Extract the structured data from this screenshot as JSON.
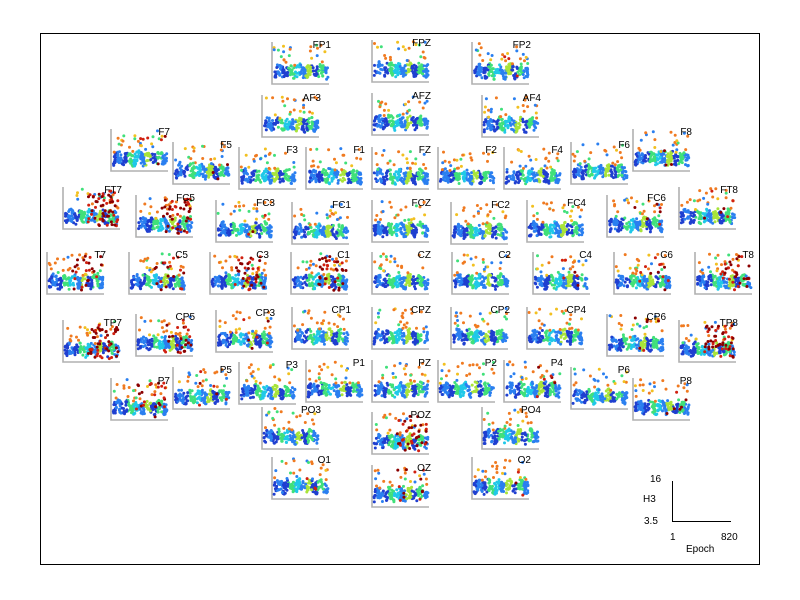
{
  "chart_data": {
    "type": "scatter",
    "title": "",
    "xlabel": "Epoch",
    "ylabel": "H3",
    "xlim": [
      1,
      820
    ],
    "ylim": [
      3.5,
      16
    ],
    "scale_labels": {
      "y_max": "16",
      "y_min": "3.5",
      "x_min": "1",
      "x_max": "820",
      "xlabel": "Epoch",
      "ylabel": "H3"
    },
    "colormap": [
      "#1f3fd0",
      "#2a7ff0",
      "#20c8e8",
      "#40e07a",
      "#a8e43a",
      "#f2c020",
      "#f07a20",
      "#d02010",
      "#8b0000"
    ],
    "channels": [
      {
        "name": "FP1",
        "artifact": 0.0
      },
      {
        "name": "FPZ",
        "artifact": 0.0
      },
      {
        "name": "FP2",
        "artifact": 0.05
      },
      {
        "name": "AF3",
        "artifact": 0.0
      },
      {
        "name": "AFZ",
        "artifact": 0.0
      },
      {
        "name": "AF4",
        "artifact": 0.0
      },
      {
        "name": "F7",
        "artifact": 0.1
      },
      {
        "name": "F5",
        "artifact": 0.05
      },
      {
        "name": "F3",
        "artifact": 0.0
      },
      {
        "name": "F1",
        "artifact": 0.0
      },
      {
        "name": "FZ",
        "artifact": 0.0
      },
      {
        "name": "F2",
        "artifact": 0.0
      },
      {
        "name": "F4",
        "artifact": 0.0
      },
      {
        "name": "F6",
        "artifact": 0.0
      },
      {
        "name": "F8",
        "artifact": 0.05
      },
      {
        "name": "FT7",
        "artifact": 0.9
      },
      {
        "name": "FC5",
        "artifact": 0.7
      },
      {
        "name": "FC3",
        "artifact": 0.05
      },
      {
        "name": "FC1",
        "artifact": 0.0
      },
      {
        "name": "FCZ",
        "artifact": 0.0
      },
      {
        "name": "FC2",
        "artifact": 0.0
      },
      {
        "name": "FC4",
        "artifact": 0.0
      },
      {
        "name": "FC6",
        "artifact": 0.1
      },
      {
        "name": "FT8",
        "artifact": 0.1
      },
      {
        "name": "T7",
        "artifact": 0.4
      },
      {
        "name": "C5",
        "artifact": 0.3
      },
      {
        "name": "C3",
        "artifact": 0.6
      },
      {
        "name": "C1",
        "artifact": 0.6
      },
      {
        "name": "CZ",
        "artifact": 0.0
      },
      {
        "name": "C2",
        "artifact": 0.0
      },
      {
        "name": "C4",
        "artifact": 0.1
      },
      {
        "name": "C6",
        "artifact": 0.2
      },
      {
        "name": "T8",
        "artifact": 0.5
      },
      {
        "name": "TP7",
        "artifact": 0.8
      },
      {
        "name": "CP5",
        "artifact": 0.4
      },
      {
        "name": "CP3",
        "artifact": 0.1
      },
      {
        "name": "CP1",
        "artifact": 0.0
      },
      {
        "name": "CPZ",
        "artifact": 0.0
      },
      {
        "name": "CP2",
        "artifact": 0.0
      },
      {
        "name": "CP4",
        "artifact": 0.0
      },
      {
        "name": "CP6",
        "artifact": 0.1
      },
      {
        "name": "TP8",
        "artifact": 0.8
      },
      {
        "name": "P7",
        "artifact": 0.4
      },
      {
        "name": "P5",
        "artifact": 0.1
      },
      {
        "name": "P3",
        "artifact": 0.0
      },
      {
        "name": "P1",
        "artifact": 0.0
      },
      {
        "name": "PZ",
        "artifact": 0.0
      },
      {
        "name": "P2",
        "artifact": 0.0
      },
      {
        "name": "P4",
        "artifact": 0.1
      },
      {
        "name": "P6",
        "artifact": 0.0
      },
      {
        "name": "P8",
        "artifact": 0.1
      },
      {
        "name": "PO3",
        "artifact": 0.0
      },
      {
        "name": "POZ",
        "artifact": 0.6
      },
      {
        "name": "PO4",
        "artifact": 0.0
      },
      {
        "name": "O1",
        "artifact": 0.05
      },
      {
        "name": "OZ",
        "artifact": 0.2
      },
      {
        "name": "O2",
        "artifact": 0.05
      }
    ]
  }
}
